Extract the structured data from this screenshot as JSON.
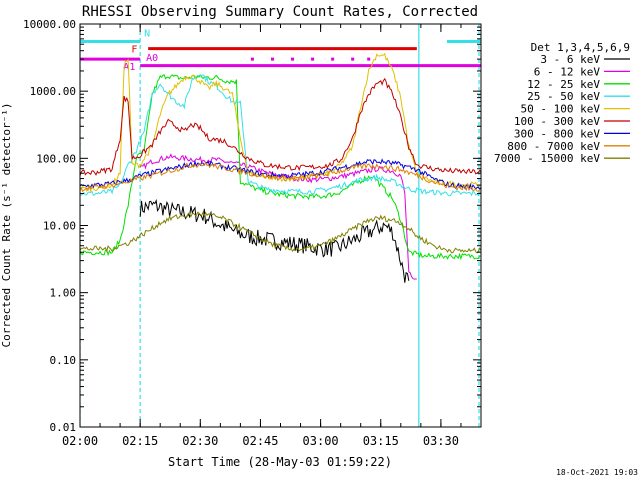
{
  "chart_data": {
    "type": "line",
    "title": "RHESSI Observing Summary Count Rates, Corrected",
    "xlabel": "Start Time (28-May-03 01:59:22)",
    "ylabel": "Corrected Count Rate (s⁻¹ detector⁻¹)",
    "yscale": "log",
    "ylim": [
      0.01,
      10000
    ],
    "xlim": [
      0,
      100
    ],
    "x_ticks": [
      {
        "label": "02:00",
        "x": 0
      },
      {
        "label": "02:15",
        "x": 15
      },
      {
        "label": "02:30",
        "x": 30
      },
      {
        "label": "02:45",
        "x": 45
      },
      {
        "label": "03:00",
        "x": 60
      },
      {
        "label": "03:15",
        "x": 75
      },
      {
        "label": "03:30",
        "x": 90
      }
    ],
    "y_ticks": [
      {
        "label": "0.01",
        "v": 0.01
      },
      {
        "label": "0.10",
        "v": 0.1
      },
      {
        "label": "1.00",
        "v": 1
      },
      {
        "label": "10.00",
        "v": 10
      },
      {
        "label": "100.00",
        "v": 100
      },
      {
        "label": "1000.00",
        "v": 1000
      },
      {
        "label": "10000.00",
        "v": 10000
      }
    ],
    "legend_title": "Det 1,3,4,5,6,9",
    "legend_position": "right",
    "footer_date": "18-Oct-2021 19:03",
    "annotations": [
      {
        "label": "N",
        "color": "#33e0e8"
      },
      {
        "label": "F",
        "color": "#e00000"
      },
      {
        "label": "A0",
        "color": "#e000e0"
      },
      {
        "label": "A1",
        "color": "#e000e0"
      }
    ],
    "bars": [
      {
        "color": "#33e0e8",
        "y": 5500,
        "segments": [
          [
            0,
            15
          ],
          [
            91.5,
            100
          ]
        ]
      },
      {
        "color": "#e00000",
        "y": 4300,
        "segments": [
          [
            17,
            84
          ]
        ]
      },
      {
        "color": "#e000e0",
        "y": 3000,
        "segments": [
          [
            0,
            15
          ]
        ]
      },
      {
        "color": "#e000e0",
        "y": 2400,
        "segments": [
          [
            15,
            100
          ]
        ]
      }
    ],
    "markers": {
      "color": "#e000e0",
      "y": 3000,
      "x": [
        43,
        48,
        53,
        58,
        63,
        68,
        72
      ]
    },
    "vlines": [
      {
        "x": 0,
        "color": "#33e0e8",
        "dashed": true
      },
      {
        "x": 15,
        "color": "#33e0e8",
        "dashed": true
      },
      {
        "x": 84.5,
        "color": "#33e0e8",
        "dashed": false
      },
      {
        "x": 99.5,
        "color": "#33e0e8",
        "dashed": true
      }
    ],
    "series": [
      {
        "name": "3 - 6 keV",
        "color": "#000000",
        "points": [
          [
            15,
            18
          ],
          [
            18,
            20
          ],
          [
            20,
            19
          ],
          [
            22,
            17
          ],
          [
            25,
            16
          ],
          [
            28,
            15
          ],
          [
            31,
            14
          ],
          [
            34,
            11
          ],
          [
            37,
            9
          ],
          [
            40,
            7.5
          ],
          [
            44,
            6.5
          ],
          [
            48,
            6
          ],
          [
            52,
            5.5
          ],
          [
            56,
            5
          ],
          [
            60,
            4.5
          ],
          [
            64,
            4.5
          ],
          [
            68,
            6
          ],
          [
            71,
            7.5
          ],
          [
            74,
            9
          ],
          [
            76,
            10
          ],
          [
            78,
            8
          ],
          [
            80,
            3
          ],
          [
            81,
            1.8
          ],
          [
            82,
            1.5
          ]
        ]
      },
      {
        "name": "6 - 12 keV",
        "color": "#e000e0",
        "points": [
          [
            15,
            70
          ],
          [
            18,
            90
          ],
          [
            22,
            105
          ],
          [
            26,
            100
          ],
          [
            30,
            95
          ],
          [
            34,
            95
          ],
          [
            38,
            85
          ],
          [
            42,
            75
          ],
          [
            46,
            62
          ],
          [
            50,
            55
          ],
          [
            54,
            50
          ],
          [
            58,
            48
          ],
          [
            62,
            50
          ],
          [
            66,
            55
          ],
          [
            70,
            62
          ],
          [
            74,
            70
          ],
          [
            78,
            65
          ],
          [
            80,
            55
          ],
          [
            81,
            30
          ],
          [
            82,
            2
          ],
          [
            83,
            1.5
          ],
          [
            84,
            1.6
          ]
        ]
      },
      {
        "name": "12 - 25 keV",
        "color": "#00e000",
        "points": [
          [
            0,
            4
          ],
          [
            4,
            4
          ],
          [
            8,
            4
          ],
          [
            10,
            6
          ],
          [
            12,
            20
          ],
          [
            14,
            100
          ],
          [
            16,
            130
          ],
          [
            18,
            900
          ],
          [
            20,
            1600
          ],
          [
            22,
            1700
          ],
          [
            24,
            1600
          ],
          [
            26,
            1550
          ],
          [
            28,
            1650
          ],
          [
            30,
            1600
          ],
          [
            34,
            1600
          ],
          [
            37,
            1400
          ],
          [
            39,
            1400
          ],
          [
            40,
            45
          ],
          [
            44,
            35
          ],
          [
            48,
            30
          ],
          [
            52,
            28
          ],
          [
            56,
            27
          ],
          [
            60,
            27
          ],
          [
            64,
            30
          ],
          [
            68,
            40
          ],
          [
            71,
            50
          ],
          [
            73,
            55
          ],
          [
            75,
            40
          ],
          [
            78,
            25
          ],
          [
            80,
            12
          ],
          [
            82,
            4
          ],
          [
            86,
            3.5
          ],
          [
            92,
            3.5
          ],
          [
            96,
            3.5
          ],
          [
            100,
            3.5
          ]
        ]
      },
      {
        "name": "25 - 50 keV",
        "color": "#33e0e8",
        "points": [
          [
            0,
            30
          ],
          [
            4,
            30
          ],
          [
            8,
            32
          ],
          [
            10,
            40
          ],
          [
            12,
            80
          ],
          [
            14,
            130
          ],
          [
            16,
            250
          ],
          [
            18,
            900
          ],
          [
            20,
            1300
          ],
          [
            22,
            900
          ],
          [
            24,
            700
          ],
          [
            26,
            600
          ],
          [
            28,
            1500
          ],
          [
            30,
            1900
          ],
          [
            32,
            1400
          ],
          [
            34,
            1200
          ],
          [
            36,
            900
          ],
          [
            38,
            700
          ],
          [
            40,
            650
          ],
          [
            42,
            45
          ],
          [
            46,
            35
          ],
          [
            50,
            33
          ],
          [
            54,
            32
          ],
          [
            58,
            32
          ],
          [
            62,
            35
          ],
          [
            66,
            40
          ],
          [
            70,
            48
          ],
          [
            74,
            52
          ],
          [
            78,
            45
          ],
          [
            80,
            40
          ],
          [
            82,
            35
          ],
          [
            86,
            32
          ],
          [
            92,
            30
          ],
          [
            100,
            30
          ]
        ]
      },
      {
        "name": "50 - 100 keV",
        "color": "#e0c000",
        "points": [
          [
            0,
            35
          ],
          [
            4,
            36
          ],
          [
            8,
            40
          ],
          [
            10,
            60
          ],
          [
            11,
            2500
          ],
          [
            12,
            3000
          ],
          [
            13,
            80
          ],
          [
            15,
            80
          ],
          [
            18,
            150
          ],
          [
            20,
            450
          ],
          [
            22,
            900
          ],
          [
            24,
            1200
          ],
          [
            26,
            1600
          ],
          [
            28,
            1700
          ],
          [
            30,
            1400
          ],
          [
            32,
            1100
          ],
          [
            34,
            1300
          ],
          [
            36,
            1100
          ],
          [
            38,
            900
          ],
          [
            40,
            200
          ],
          [
            42,
            60
          ],
          [
            46,
            55
          ],
          [
            50,
            50
          ],
          [
            54,
            50
          ],
          [
            58,
            55
          ],
          [
            62,
            60
          ],
          [
            65,
            80
          ],
          [
            68,
            150
          ],
          [
            70,
            600
          ],
          [
            72,
            2000
          ],
          [
            74,
            3500
          ],
          [
            76,
            3400
          ],
          [
            78,
            2000
          ],
          [
            80,
            800
          ],
          [
            82,
            150
          ],
          [
            84,
            60
          ],
          [
            88,
            45
          ],
          [
            92,
            42
          ],
          [
            100,
            40
          ]
        ]
      },
      {
        "name": "100 - 300 keV",
        "color": "#c00000",
        "points": [
          [
            0,
            60
          ],
          [
            4,
            62
          ],
          [
            8,
            70
          ],
          [
            10,
            200
          ],
          [
            11,
            800
          ],
          [
            12,
            700
          ],
          [
            13,
            100
          ],
          [
            15,
            110
          ],
          [
            18,
            160
          ],
          [
            20,
            250
          ],
          [
            22,
            350
          ],
          [
            24,
            300
          ],
          [
            26,
            250
          ],
          [
            28,
            320
          ],
          [
            30,
            280
          ],
          [
            32,
            200
          ],
          [
            34,
            190
          ],
          [
            36,
            180
          ],
          [
            38,
            150
          ],
          [
            42,
            100
          ],
          [
            46,
            80
          ],
          [
            50,
            75
          ],
          [
            54,
            72
          ],
          [
            58,
            74
          ],
          [
            62,
            78
          ],
          [
            65,
            95
          ],
          [
            68,
            200
          ],
          [
            70,
            500
          ],
          [
            72,
            900
          ],
          [
            74,
            1300
          ],
          [
            76,
            1400
          ],
          [
            78,
            900
          ],
          [
            80,
            400
          ],
          [
            82,
            150
          ],
          [
            84,
            80
          ],
          [
            88,
            70
          ],
          [
            92,
            65
          ],
          [
            100,
            62
          ]
        ]
      },
      {
        "name": "300 - 800 keV",
        "color": "#0000e0",
        "points": [
          [
            0,
            38
          ],
          [
            4,
            40
          ],
          [
            8,
            42
          ],
          [
            10,
            45
          ],
          [
            12,
            47
          ],
          [
            15,
            55
          ],
          [
            20,
            65
          ],
          [
            25,
            75
          ],
          [
            28,
            82
          ],
          [
            30,
            85
          ],
          [
            33,
            82
          ],
          [
            36,
            75
          ],
          [
            40,
            68
          ],
          [
            44,
            60
          ],
          [
            48,
            56
          ],
          [
            52,
            55
          ],
          [
            56,
            58
          ],
          [
            60,
            62
          ],
          [
            64,
            70
          ],
          [
            68,
            80
          ],
          [
            72,
            90
          ],
          [
            76,
            88
          ],
          [
            80,
            80
          ],
          [
            84,
            68
          ],
          [
            88,
            50
          ],
          [
            92,
            40
          ],
          [
            96,
            38
          ],
          [
            100,
            37
          ]
        ]
      },
      {
        "name": "800 - 7000 keV",
        "color": "#e08000",
        "points": [
          [
            0,
            35
          ],
          [
            4,
            37
          ],
          [
            8,
            40
          ],
          [
            10,
            43
          ],
          [
            12,
            45
          ],
          [
            15,
            50
          ],
          [
            20,
            60
          ],
          [
            25,
            72
          ],
          [
            28,
            80
          ],
          [
            30,
            82
          ],
          [
            33,
            78
          ],
          [
            36,
            72
          ],
          [
            40,
            65
          ],
          [
            44,
            57
          ],
          [
            48,
            52
          ],
          [
            52,
            50
          ],
          [
            56,
            52
          ],
          [
            60,
            56
          ],
          [
            64,
            63
          ],
          [
            68,
            72
          ],
          [
            72,
            78
          ],
          [
            76,
            75
          ],
          [
            80,
            68
          ],
          [
            84,
            56
          ],
          [
            88,
            45
          ],
          [
            92,
            38
          ],
          [
            96,
            36
          ],
          [
            100,
            35
          ]
        ]
      },
      {
        "name": "7000 - 15000 keV",
        "color": "#808000",
        "points": [
          [
            0,
            4.5
          ],
          [
            4,
            4.5
          ],
          [
            8,
            4.5
          ],
          [
            10,
            5
          ],
          [
            12,
            5.5
          ],
          [
            15,
            7
          ],
          [
            18,
            9
          ],
          [
            20,
            11
          ],
          [
            23,
            13
          ],
          [
            26,
            14
          ],
          [
            30,
            15
          ],
          [
            33,
            14
          ],
          [
            36,
            12.5
          ],
          [
            39,
            10
          ],
          [
            42,
            8
          ],
          [
            45,
            6.5
          ],
          [
            48,
            5.2
          ],
          [
            52,
            4.5
          ],
          [
            56,
            4.4
          ],
          [
            60,
            5
          ],
          [
            63,
            6
          ],
          [
            66,
            7.5
          ],
          [
            69,
            9.5
          ],
          [
            72,
            12
          ],
          [
            75,
            13
          ],
          [
            78,
            12
          ],
          [
            80,
            11
          ],
          [
            82,
            9
          ],
          [
            84,
            7
          ],
          [
            87,
            5.5
          ],
          [
            90,
            4.5
          ],
          [
            94,
            4.2
          ],
          [
            100,
            4.2
          ]
        ]
      }
    ]
  }
}
